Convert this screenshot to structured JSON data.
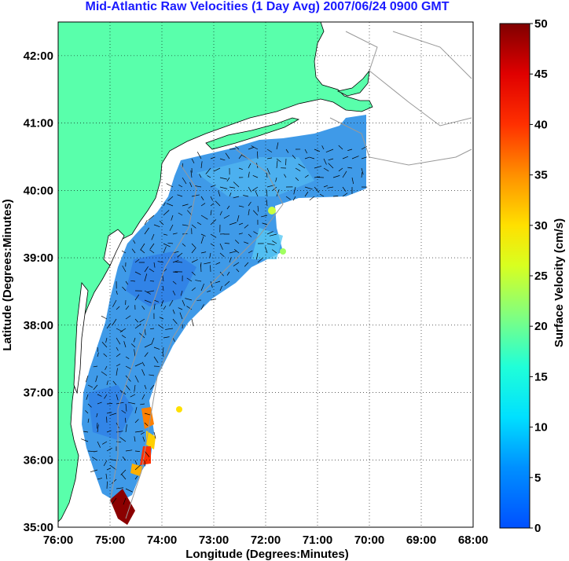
{
  "title": "Mid-Atlantic Raw Velocities (1 Day Avg) 2007/06/24 0900 GMT",
  "map": {
    "xlabel": "Longitude (Degrees:Minutes)",
    "ylabel": "Latitude (Degrees:Minutes)",
    "x_ticks": [
      "76:00",
      "75:00",
      "74:00",
      "73:00",
      "72:00",
      "71:00",
      "70:00",
      "69:00",
      "68:00"
    ],
    "y_ticks": [
      "42:00",
      "41:00",
      "40:00",
      "39:00",
      "38:00",
      "37:00",
      "36:00",
      "35:00"
    ],
    "xlim": [
      -76,
      -68
    ],
    "ylim": [
      35,
      42.5
    ],
    "grid": "dotted",
    "land_color": "#59ffab",
    "coast_line_color": "#000000",
    "bathymetry_color": "#999999"
  },
  "colorbar": {
    "label": "Surface Velocity (cm/s)",
    "ticks": [
      "0",
      "5",
      "10",
      "15",
      "20",
      "25",
      "30",
      "35",
      "40",
      "45",
      "50"
    ],
    "range": [
      0,
      50
    ],
    "colormap": "jet"
  }
}
